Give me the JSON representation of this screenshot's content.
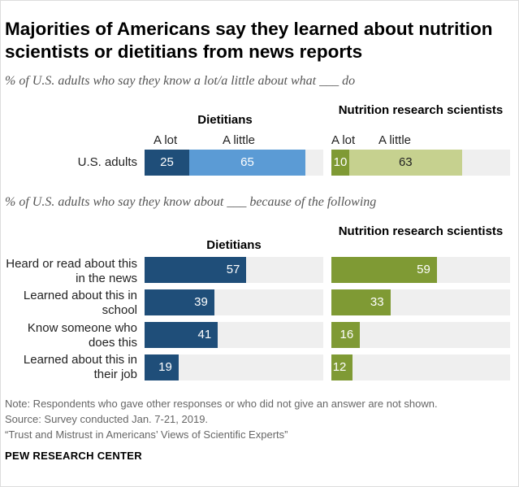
{
  "title": "Majorities of Americans say they learned about nutrition scientists or dietitians from news reports",
  "chart_data": [
    {
      "type": "bar",
      "subtitle": "% of U.S. adults who say they know a lot/a little about what ___ do",
      "categories": [
        "U.S. adults"
      ],
      "stacked": true,
      "panels": [
        {
          "name": "Dietitians",
          "series": [
            {
              "name": "A lot",
              "values": [
                25
              ]
            },
            {
              "name": "A little",
              "values": [
                65
              ]
            }
          ]
        },
        {
          "name": "Nutrition research scientists",
          "series": [
            {
              "name": "A lot",
              "values": [
                10
              ]
            },
            {
              "name": "A little",
              "values": [
                63
              ]
            }
          ]
        }
      ],
      "xlim": [
        0,
        100
      ]
    },
    {
      "type": "bar",
      "subtitle": "% of U.S. adults who say they know about ___ because of the following",
      "categories": [
        "Heard or read about this in the news",
        "Learned about this in school",
        "Know someone who does this",
        "Learned about this in their job"
      ],
      "panels": [
        {
          "name": "Dietitians",
          "values": [
            57,
            39,
            41,
            19
          ]
        },
        {
          "name": "Nutrition research scientists",
          "values": [
            59,
            33,
            16,
            12
          ]
        }
      ],
      "xlim": [
        0,
        100
      ]
    }
  ],
  "colors": {
    "diet_dark": "#1f4e79",
    "diet_light": "#5b9bd5",
    "nutr_dark": "#7f9a34",
    "nutr_light": "#c6d18f",
    "track": "#efefef"
  },
  "note": [
    "Note: Respondents who gave other responses or who did not give an answer are not shown.",
    "Source: Survey conducted Jan. 7-21, 2019.",
    "“Trust and Mistrust in Americans’ Views of Scientific Experts”"
  ],
  "source_label": "PEW RESEARCH CENTER"
}
